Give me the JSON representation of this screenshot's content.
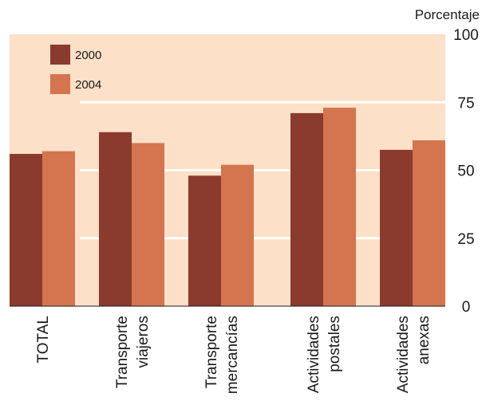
{
  "chart_data": {
    "type": "bar",
    "ylabel": "Porcentaje",
    "ylim": [
      0,
      100
    ],
    "yticks": [
      "0",
      "25",
      "50",
      "75",
      "100"
    ],
    "grid": true,
    "legend_position": "top-left",
    "categories": [
      [
        "TOTAL"
      ],
      [
        "Transporte",
        "viajeros"
      ],
      [
        "Transporte",
        "mercancías"
      ],
      [
        "Actividades",
        "postales"
      ],
      [
        "Actividades",
        "anexas"
      ]
    ],
    "series": [
      {
        "name": "2000",
        "color": "#8b3a2e",
        "values": [
          56,
          64,
          48,
          71,
          57.5
        ]
      },
      {
        "name": "2004",
        "color": "#d4754f",
        "values": [
          57,
          60,
          52,
          73,
          61
        ]
      }
    ],
    "plot_background": "#fce0c8"
  }
}
